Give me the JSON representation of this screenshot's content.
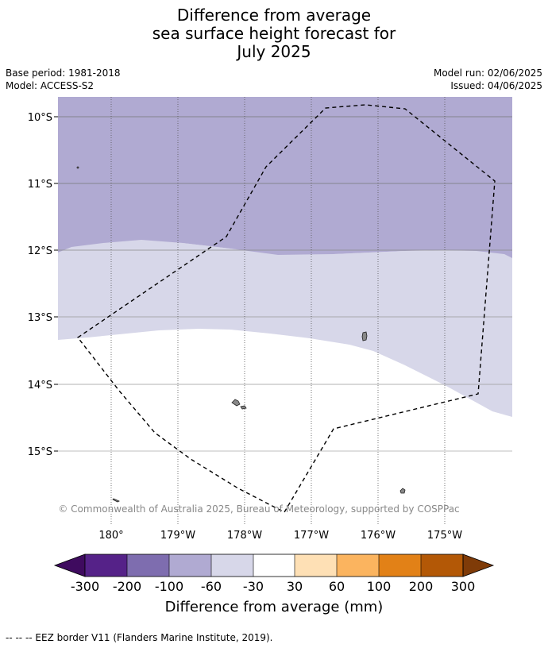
{
  "title": {
    "line1": "Difference from average",
    "line2": "sea surface height forecast for",
    "line3": "July 2025"
  },
  "meta": {
    "base_period": "Base period: 1981-2018",
    "model": "Model: ACCESS-S2",
    "model_run": "Model run: 02/06/2025",
    "issued": "Issued: 04/06/2025"
  },
  "map": {
    "lat_labels": [
      "10°S",
      "11°S",
      "12°S",
      "13°S",
      "14°S",
      "15°S"
    ],
    "lon_labels": [
      "180°",
      "179°W",
      "178°W",
      "177°W",
      "176°W",
      "175°W"
    ],
    "copyright": "© Commonwealth of Australia 2025, Bureau of Meteorology, supported by COSPPac",
    "region_colors": {
      "minus_100_to_minus_60": "#b0aad2",
      "minus_60_to_minus_30": "#d7d7e9",
      "minus_30_to_30": "#ffffff"
    },
    "eez_style": "dashed black"
  },
  "colorbar": {
    "tick_labels": [
      "-300",
      "-200",
      "-100",
      "-60",
      "-30",
      "30",
      "60",
      "100",
      "200",
      "300"
    ],
    "colors": [
      "#3f0b5f",
      "#552288",
      "#7e6daf",
      "#b0aad2",
      "#d7d7e9",
      "#ffffff",
      "#fee0b5",
      "#fbb45f",
      "#e28117",
      "#b35806",
      "#7f3b08"
    ],
    "label": "Difference from average (mm)"
  },
  "legend": {
    "eez_text": "--  --  -- EEZ border V11 (Flanders Marine Institute, 2019)."
  }
}
